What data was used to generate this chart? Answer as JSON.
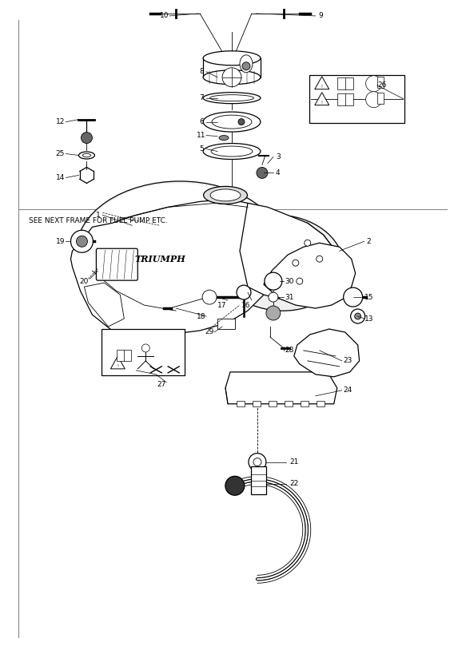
{
  "background_color": "#ffffff",
  "line_color": "#000000",
  "figsize": [
    5.83,
    8.24
  ],
  "dpi": 100,
  "note_text": "SEE NEXT FRAME FOR FUEL PUMP ETC."
}
